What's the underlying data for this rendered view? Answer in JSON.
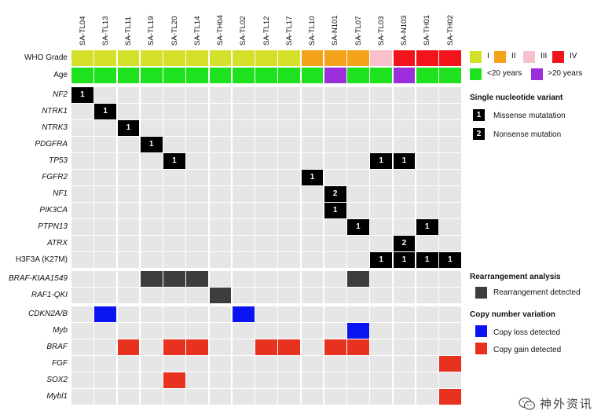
{
  "samples": [
    "SA-TL04",
    "SA-TL13",
    "SA-TL11",
    "SA-TL19",
    "SA-TL20",
    "SA-TL14",
    "SA-TH04",
    "SA-TL02",
    "SA-TL12",
    "SA-TL17",
    "SA-TL10",
    "SA-N101",
    "SA-TL07",
    "SA-TL03",
    "SA-N103",
    "SA-TH01",
    "SA-TH02"
  ],
  "annotation_rows": [
    {
      "label": "WHO Grade",
      "values": [
        "I",
        "I",
        "I",
        "I",
        "I",
        "I",
        "I",
        "I",
        "I",
        "I",
        "II",
        "II",
        "II",
        "III",
        "IV",
        "IV",
        "IV"
      ]
    },
    {
      "label": "Age",
      "values": [
        "<20",
        "<20",
        "<20",
        "<20",
        "<20",
        "<20",
        "<20",
        "<20",
        "<20",
        "<20",
        "<20",
        ">20",
        "<20",
        "<20",
        ">20",
        "<20",
        "<20"
      ]
    }
  ],
  "colors": {
    "grade_I": "#d4e029",
    "grade_II": "#f5a21b",
    "grade_III": "#f7c0ca",
    "grade_IV": "#f2141a",
    "age_under20": "#1ee21e",
    "age_over20": "#9b2fdc",
    "empty": "#e6e6e6",
    "snv": "#000000",
    "rearrangement": "#3d3d3d",
    "copy_loss": "#0a14f0",
    "copy_gain": "#e6321e"
  },
  "snv_section": {
    "genes": [
      "NF2",
      "NTRK1",
      "NTRK3",
      "PDGFRA",
      "TP53",
      "FGFR2",
      "NF1",
      "PIK3CA",
      "PTPN13",
      "ATRX",
      "H3F3A (K27M)"
    ],
    "italic": [
      true,
      true,
      true,
      true,
      true,
      true,
      true,
      true,
      true,
      true,
      false
    ],
    "events": [
      {
        "gene": 0,
        "sample": 0,
        "code": "1"
      },
      {
        "gene": 1,
        "sample": 1,
        "code": "1"
      },
      {
        "gene": 2,
        "sample": 2,
        "code": "1"
      },
      {
        "gene": 3,
        "sample": 3,
        "code": "1"
      },
      {
        "gene": 4,
        "sample": 4,
        "code": "1"
      },
      {
        "gene": 4,
        "sample": 13,
        "code": "1"
      },
      {
        "gene": 4,
        "sample": 14,
        "code": "1"
      },
      {
        "gene": 5,
        "sample": 10,
        "code": "1"
      },
      {
        "gene": 6,
        "sample": 11,
        "code": "2"
      },
      {
        "gene": 7,
        "sample": 11,
        "code": "1"
      },
      {
        "gene": 8,
        "sample": 12,
        "code": "1"
      },
      {
        "gene": 8,
        "sample": 15,
        "code": "1"
      },
      {
        "gene": 9,
        "sample": 14,
        "code": "2"
      },
      {
        "gene": 10,
        "sample": 13,
        "code": "1"
      },
      {
        "gene": 10,
        "sample": 14,
        "code": "1"
      },
      {
        "gene": 10,
        "sample": 15,
        "code": "1"
      },
      {
        "gene": 10,
        "sample": 16,
        "code": "1"
      }
    ]
  },
  "rearrangement_section": {
    "genes": [
      "BRAF-KIAA1549",
      "RAF1-QKI"
    ],
    "events": [
      {
        "gene": 0,
        "sample": 3
      },
      {
        "gene": 0,
        "sample": 4
      },
      {
        "gene": 0,
        "sample": 5
      },
      {
        "gene": 0,
        "sample": 12
      },
      {
        "gene": 1,
        "sample": 6
      }
    ]
  },
  "cnv_section": {
    "genes": [
      "CDKN2A/B",
      "Myb",
      "BRAF",
      "FGF",
      "SOX2",
      "Mybl1"
    ],
    "events": [
      {
        "gene": 0,
        "sample": 1,
        "type": "loss"
      },
      {
        "gene": 0,
        "sample": 7,
        "type": "loss"
      },
      {
        "gene": 1,
        "sample": 12,
        "type": "loss"
      },
      {
        "gene": 2,
        "sample": 2,
        "type": "gain"
      },
      {
        "gene": 2,
        "sample": 4,
        "type": "gain"
      },
      {
        "gene": 2,
        "sample": 5,
        "type": "gain"
      },
      {
        "gene": 2,
        "sample": 8,
        "type": "gain"
      },
      {
        "gene": 2,
        "sample": 9,
        "type": "gain"
      },
      {
        "gene": 2,
        "sample": 11,
        "type": "gain"
      },
      {
        "gene": 2,
        "sample": 12,
        "type": "gain"
      },
      {
        "gene": 3,
        "sample": 16,
        "type": "gain"
      },
      {
        "gene": 4,
        "sample": 4,
        "type": "gain"
      },
      {
        "gene": 5,
        "sample": 16,
        "type": "gain"
      }
    ]
  },
  "legend": {
    "grade": {
      "I": "I",
      "II": "II",
      "III": "III",
      "IV": "IV"
    },
    "age": {
      "under": "<20 years",
      "over": ">20 years"
    },
    "snv_title": "Single nucleotide variant",
    "snv_items": [
      {
        "code": "1",
        "label": "Missense mutatation"
      },
      {
        "code": "2",
        "label": "Nonsense mutation"
      }
    ],
    "rearr_title": "Rearrangement analysis",
    "rearr_item": "Rearrangement detected",
    "cnv_title": "Copy number variation",
    "cnv_loss": "Copy loss detected",
    "cnv_gain": "Copy gain detected"
  },
  "watermark": {
    "text": "神外资讯",
    "icon": "wechat-icon"
  }
}
